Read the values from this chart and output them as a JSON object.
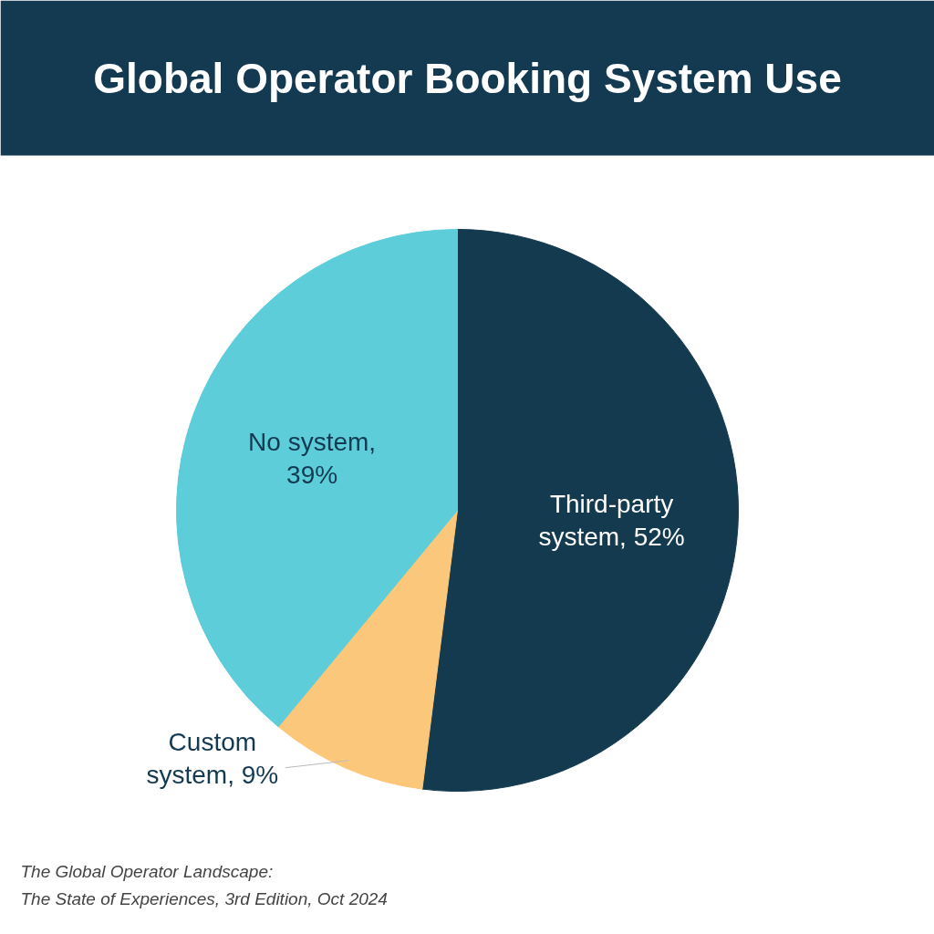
{
  "chart_data": {
    "type": "pie",
    "title": "Global Operator Booking System Use",
    "categories": [
      "Third-party system, 52%",
      "Custom system, 9%",
      "No system, 39%"
    ],
    "values": [
      52,
      9,
      39
    ],
    "colors": [
      "#133a4f",
      "#fbc77a",
      "#5ccdd9"
    ],
    "annotations": [
      "The Global Operator Landscape:",
      "The State of Experiences, 3rd Edition, Oct 2024"
    ]
  }
}
